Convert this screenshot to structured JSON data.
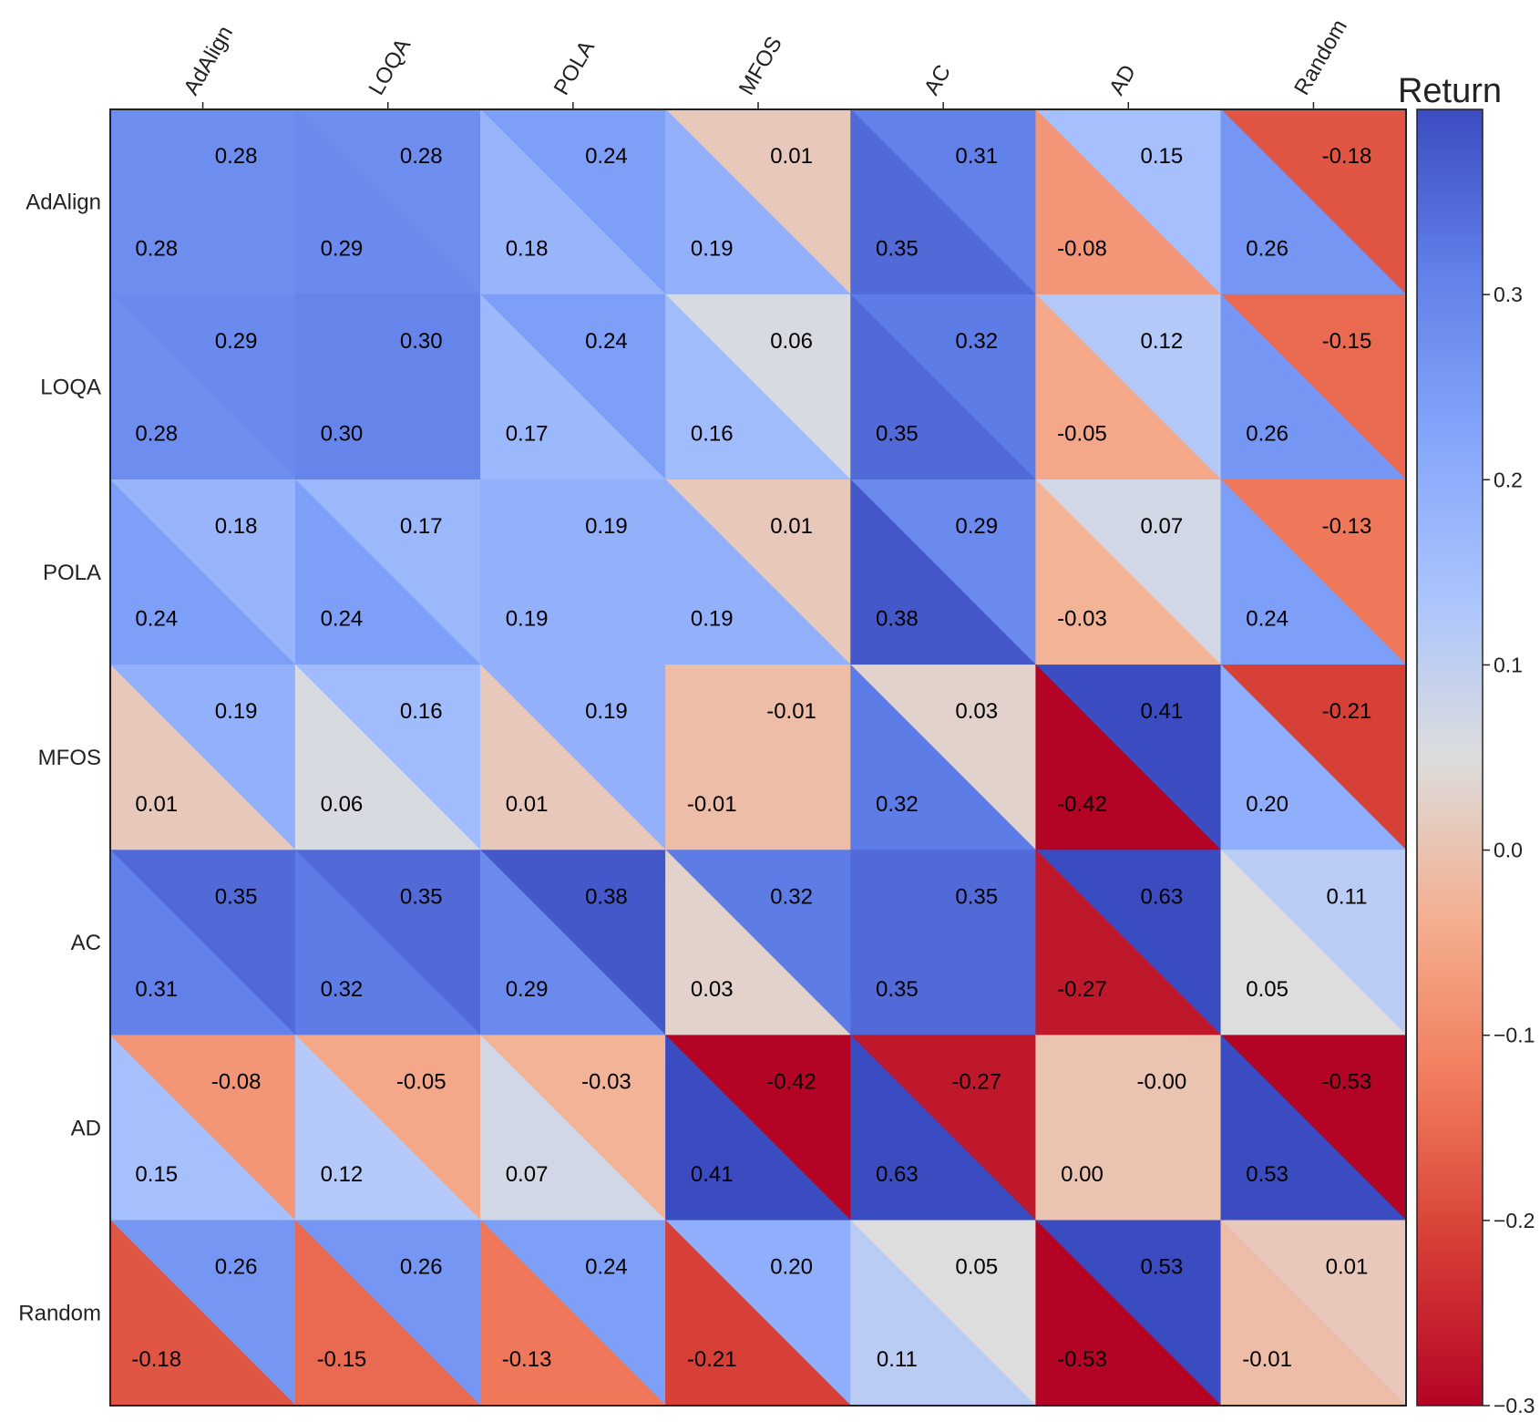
{
  "chart_data": {
    "type": "heatmap",
    "title": "",
    "agents": [
      "AdAlign",
      "LOQA",
      "POLA",
      "MFOS",
      "AC",
      "AD",
      "Random"
    ],
    "cell_layout": "each cell split along its diagonal; upper-right triangle and lower-left triangle each show one return value",
    "upper_right": [
      [
        0.28,
        0.28,
        0.24,
        0.01,
        0.31,
        0.15,
        -0.18
      ],
      [
        0.29,
        0.3,
        0.24,
        0.06,
        0.32,
        0.12,
        -0.15
      ],
      [
        0.18,
        0.17,
        0.19,
        0.01,
        0.29,
        0.07,
        -0.13
      ],
      [
        0.19,
        0.16,
        0.19,
        -0.01,
        0.03,
        0.41,
        -0.21
      ],
      [
        0.35,
        0.35,
        0.38,
        0.32,
        0.35,
        0.63,
        0.11
      ],
      [
        -0.08,
        -0.05,
        -0.03,
        -0.42,
        -0.27,
        -0.0,
        -0.53
      ],
      [
        0.26,
        0.26,
        0.24,
        0.2,
        0.05,
        0.53,
        0.01
      ]
    ],
    "lower_left": [
      [
        0.28,
        0.29,
        0.18,
        0.19,
        0.35,
        -0.08,
        0.26
      ],
      [
        0.28,
        0.3,
        0.17,
        0.16,
        0.35,
        -0.05,
        0.26
      ],
      [
        0.24,
        0.24,
        0.19,
        0.19,
        0.38,
        -0.03,
        0.24
      ],
      [
        0.01,
        0.06,
        0.01,
        -0.01,
        0.32,
        -0.42,
        0.2
      ],
      [
        0.31,
        0.32,
        0.29,
        0.03,
        0.35,
        -0.27,
        0.05
      ],
      [
        0.15,
        0.12,
        0.07,
        0.41,
        0.63,
        0.0,
        0.53
      ],
      [
        -0.18,
        -0.15,
        -0.13,
        -0.21,
        0.11,
        -0.53,
        -0.01
      ]
    ],
    "upper_right_labels": [
      [
        "0.28",
        "0.28",
        "0.24",
        "0.01",
        "0.31",
        "0.15",
        "-0.18"
      ],
      [
        "0.29",
        "0.30",
        "0.24",
        "0.06",
        "0.32",
        "0.12",
        "-0.15"
      ],
      [
        "0.18",
        "0.17",
        "0.19",
        "0.01",
        "0.29",
        "0.07",
        "-0.13"
      ],
      [
        "0.19",
        "0.16",
        "0.19",
        "-0.01",
        "0.03",
        "0.41",
        "-0.21"
      ],
      [
        "0.35",
        "0.35",
        "0.38",
        "0.32",
        "0.35",
        "0.63",
        "0.11"
      ],
      [
        "-0.08",
        "-0.05",
        "-0.03",
        "-0.42",
        "-0.27",
        "-0.00",
        "-0.53"
      ],
      [
        "0.26",
        "0.26",
        "0.24",
        "0.20",
        "0.05",
        "0.53",
        "0.01"
      ]
    ],
    "lower_left_labels": [
      [
        "0.28",
        "0.29",
        "0.18",
        "0.19",
        "0.35",
        "-0.08",
        "0.26"
      ],
      [
        "0.28",
        "0.30",
        "0.17",
        "0.16",
        "0.35",
        "-0.05",
        "0.26"
      ],
      [
        "0.24",
        "0.24",
        "0.19",
        "0.19",
        "0.38",
        "-0.03",
        "0.24"
      ],
      [
        "0.01",
        "0.06",
        "0.01",
        "-0.01",
        "0.32",
        "-0.42",
        "0.20"
      ],
      [
        "0.31",
        "0.32",
        "0.29",
        "0.03",
        "0.35",
        "-0.27",
        "0.05"
      ],
      [
        "0.15",
        "0.12",
        "0.07",
        "0.41",
        "0.63",
        "0.00",
        "0.53"
      ],
      [
        "-0.18",
        "-0.15",
        "-0.13",
        "-0.21",
        "0.11",
        "-0.53",
        "-0.01"
      ]
    ],
    "colorbar": {
      "title": "Return",
      "vmin": -0.3,
      "vmax": 0.4,
      "ticks": [
        0.3,
        0.2,
        0.1,
        0.0,
        -0.1,
        -0.2,
        -0.3
      ],
      "tick_labels": [
        "0.3",
        "0.2",
        "0.1",
        "0.0",
        "−0.1",
        "−0.2",
        "−0.3"
      ],
      "colormap": "coolwarm_r"
    },
    "legend": "colorbar-right",
    "grid": false
  }
}
